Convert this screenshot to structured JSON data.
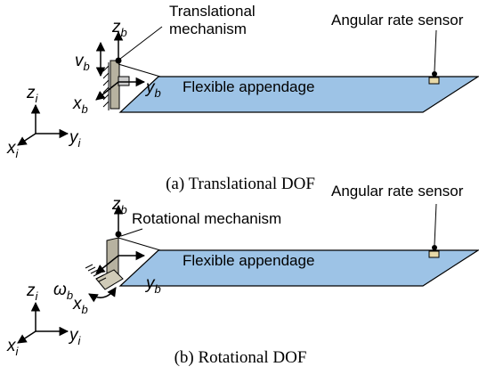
{
  "panels": [
    {
      "caption": "(a) Translational DOF",
      "mechanism_label": [
        "Translational",
        "mechanism"
      ],
      "sensor_label": "Angular rate sensor",
      "appendage_label": "Flexible appendage",
      "body_axes": [
        {
          "symbol": "z",
          "subscript": "b"
        },
        {
          "symbol": "v",
          "subscript": "b"
        },
        {
          "symbol": "y",
          "subscript": "b"
        },
        {
          "symbol": "x",
          "subscript": "b"
        }
      ],
      "inertial_axes": [
        {
          "symbol": "z",
          "subscript": "i"
        },
        {
          "symbol": "y",
          "subscript": "i"
        },
        {
          "symbol": "x",
          "subscript": "i"
        }
      ]
    },
    {
      "caption": "(b) Rotational DOF",
      "mechanism_label": [
        "Rotational mechanism"
      ],
      "sensor_label": "Angular rate sensor",
      "appendage_label": "Flexible appendage",
      "body_axes": [
        {
          "symbol": "z",
          "subscript": "b"
        },
        {
          "symbol": "ω",
          "subscript": "b"
        },
        {
          "symbol": "y",
          "subscript": "b"
        },
        {
          "symbol": "x",
          "subscript": "b"
        }
      ],
      "inertial_axes": [
        {
          "symbol": "z",
          "subscript": "i"
        },
        {
          "symbol": "y",
          "subscript": "i"
        },
        {
          "symbol": "x",
          "subscript": "i"
        }
      ]
    }
  ]
}
